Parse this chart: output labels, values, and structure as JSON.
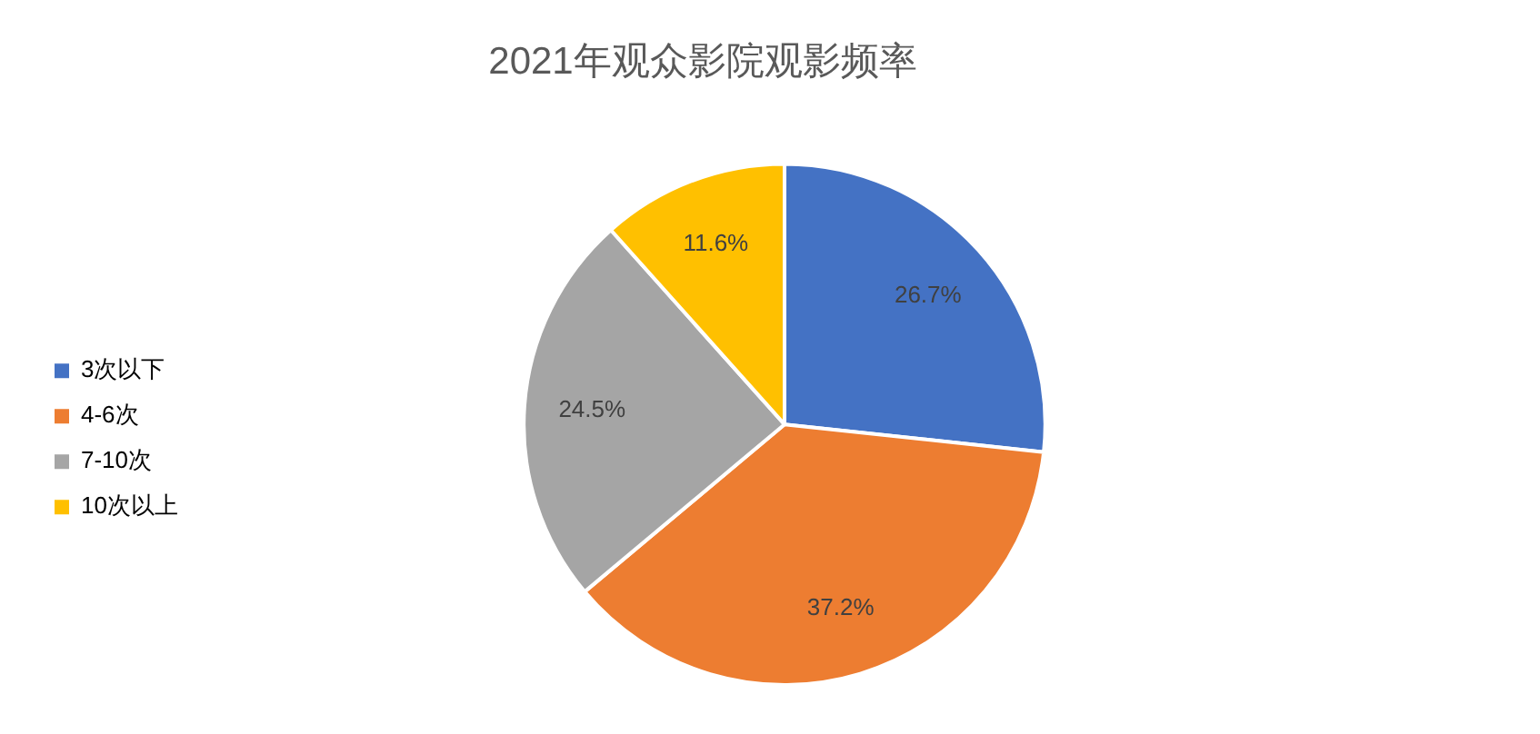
{
  "chart_data": {
    "type": "pie",
    "title": "2021年观众影院观影频率",
    "categories": [
      "3次以下",
      "4-6次",
      "7-10次",
      "10次以上"
    ],
    "values": [
      26.7,
      37.2,
      24.5,
      11.6
    ],
    "colors": [
      "#4472c4",
      "#ed7d31",
      "#a5a5a5",
      "#ffc000"
    ],
    "value_labels": [
      "26.7%",
      "37.2%",
      "24.5%",
      "11.6%"
    ],
    "legend": "left"
  }
}
